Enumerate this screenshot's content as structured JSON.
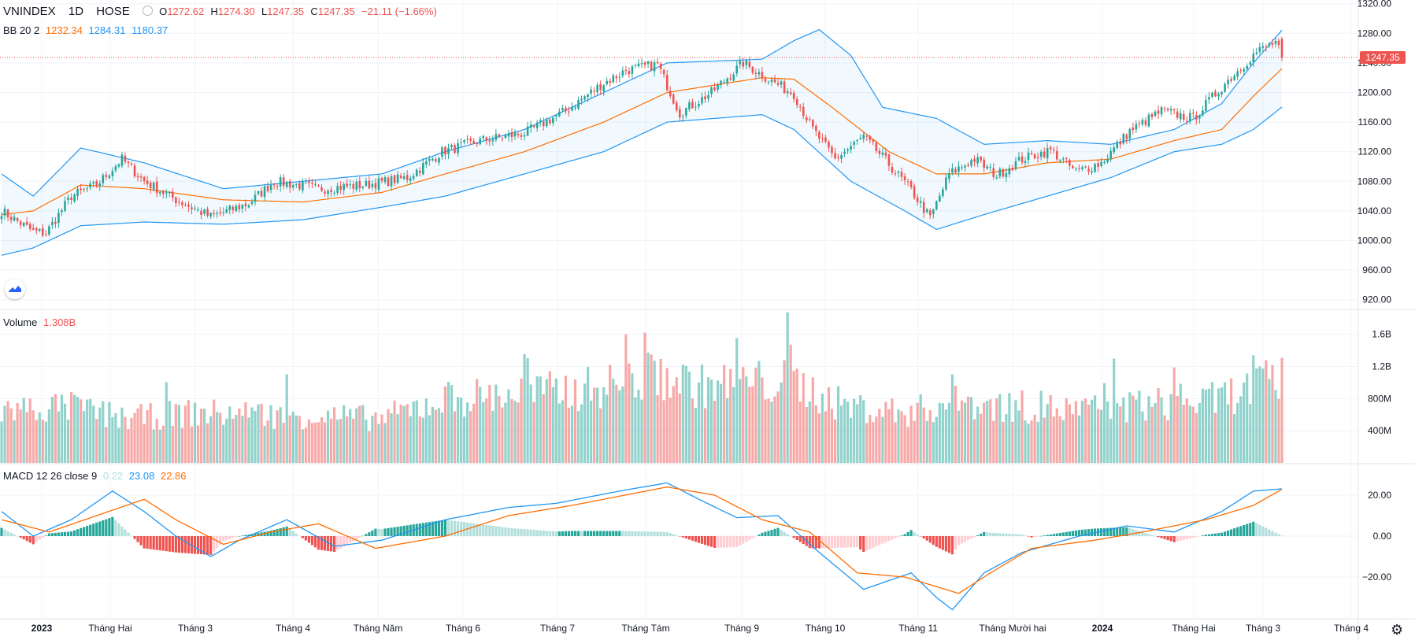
{
  "header": {
    "symbol": "VNINDEX",
    "interval": "1D",
    "exchange": "HOSE",
    "o_label": "O",
    "o_value": "1272.62",
    "h_label": "H",
    "h_value": "1274.30",
    "l_label": "L",
    "l_value": "1247.35",
    "c_label": "C",
    "c_value": "1247.35",
    "change": "−21.11 (−1.66%)"
  },
  "bb_legend": {
    "name": "BB 20 2",
    "basis": "1232.34",
    "upper": "1284.31",
    "lower": "1180.37"
  },
  "volume_legend": {
    "name": "Volume",
    "value": "1.308B"
  },
  "macd_legend": {
    "name": "MACD 12 26 close 9",
    "hist": "0.22",
    "macd": "23.08",
    "signal": "22.86"
  },
  "last_price_label": "1247.35",
  "colors": {
    "up": "#26a69a",
    "down": "#ef5350",
    "upper_band": "#2196f3",
    "basis": "#ff6d00",
    "macd": "#2196f3",
    "signal": "#ff6d00"
  },
  "chart_data": [
    {
      "type": "candlestick",
      "title": "VNINDEX 1D HOSE",
      "y_ticks": [
        "1320.00",
        "1280.00",
        "1240.00",
        "1200.00",
        "1160.00",
        "1120.00",
        "1080.00",
        "1040.00",
        "1000.00",
        "960.00",
        "920.00"
      ],
      "ylim": [
        908,
        1325
      ],
      "x_ticks": [
        "2023",
        "Tháng Hai",
        "Tháng 3",
        "Tháng 4",
        "Tháng Năm",
        "Tháng 6",
        "Tháng 7",
        "Tháng Tám",
        "Tháng 9",
        "Tháng 10",
        "Tháng 11",
        "Tháng Mười hai",
        "2024",
        "Tháng Hai",
        "Tháng 3",
        "Tháng 4"
      ],
      "close_anchors": [
        [
          0,
          1040
        ],
        [
          10,
          1012
        ],
        [
          14,
          1010
        ],
        [
          22,
          1060
        ],
        [
          30,
          1075
        ],
        [
          38,
          1110
        ],
        [
          45,
          1080
        ],
        [
          55,
          1055
        ],
        [
          66,
          1032
        ],
        [
          78,
          1050
        ],
        [
          86,
          1080
        ],
        [
          100,
          1070
        ],
        [
          115,
          1075
        ],
        [
          128,
          1085
        ],
        [
          139,
          1120
        ],
        [
          151,
          1135
        ],
        [
          165,
          1145
        ],
        [
          178,
          1175
        ],
        [
          189,
          1210
        ],
        [
          197,
          1230
        ],
        [
          207,
          1238
        ],
        [
          214,
          1172
        ],
        [
          224,
          1200
        ],
        [
          234,
          1240
        ],
        [
          242,
          1218
        ],
        [
          250,
          1198
        ],
        [
          256,
          1150
        ],
        [
          263,
          1110
        ],
        [
          272,
          1140
        ],
        [
          279,
          1108
        ],
        [
          287,
          1068
        ],
        [
          293,
          1030
        ],
        [
          299,
          1090
        ],
        [
          307,
          1110
        ],
        [
          314,
          1088
        ],
        [
          322,
          1110
        ],
        [
          331,
          1122
        ],
        [
          339,
          1093
        ],
        [
          347,
          1105
        ],
        [
          356,
          1148
        ],
        [
          366,
          1175
        ],
        [
          376,
          1165
        ],
        [
          386,
          1212
        ],
        [
          396,
          1255
        ],
        [
          402,
          1268
        ],
        [
          404,
          1247.35
        ]
      ],
      "bb_anchors": {
        "upper": [
          [
            0,
            1090
          ],
          [
            10,
            1060
          ],
          [
            25,
            1125
          ],
          [
            45,
            1105
          ],
          [
            70,
            1070
          ],
          [
            95,
            1080
          ],
          [
            120,
            1090
          ],
          [
            140,
            1120
          ],
          [
            165,
            1150
          ],
          [
            190,
            1200
          ],
          [
            210,
            1240
          ],
          [
            240,
            1245
          ],
          [
            250,
            1270
          ],
          [
            258,
            1285
          ],
          [
            268,
            1250
          ],
          [
            278,
            1180
          ],
          [
            295,
            1165
          ],
          [
            310,
            1130
          ],
          [
            330,
            1135
          ],
          [
            350,
            1130
          ],
          [
            370,
            1150
          ],
          [
            385,
            1185
          ],
          [
            395,
            1240
          ],
          [
            404,
            1284.31
          ]
        ],
        "basis": [
          [
            0,
            1035
          ],
          [
            10,
            1040
          ],
          [
            25,
            1075
          ],
          [
            45,
            1070
          ],
          [
            70,
            1055
          ],
          [
            95,
            1052
          ],
          [
            120,
            1065
          ],
          [
            140,
            1090
          ],
          [
            165,
            1120
          ],
          [
            190,
            1160
          ],
          [
            210,
            1200
          ],
          [
            240,
            1220
          ],
          [
            250,
            1218
          ],
          [
            262,
            1180
          ],
          [
            280,
            1120
          ],
          [
            295,
            1090
          ],
          [
            310,
            1090
          ],
          [
            330,
            1105
          ],
          [
            350,
            1110
          ],
          [
            370,
            1135
          ],
          [
            385,
            1150
          ],
          [
            395,
            1195
          ],
          [
            404,
            1232.34
          ]
        ],
        "lower": [
          [
            0,
            980
          ],
          [
            10,
            990
          ],
          [
            25,
            1020
          ],
          [
            45,
            1025
          ],
          [
            70,
            1022
          ],
          [
            95,
            1028
          ],
          [
            120,
            1045
          ],
          [
            140,
            1060
          ],
          [
            165,
            1090
          ],
          [
            190,
            1120
          ],
          [
            210,
            1160
          ],
          [
            240,
            1170
          ],
          [
            250,
            1150
          ],
          [
            268,
            1080
          ],
          [
            285,
            1040
          ],
          [
            295,
            1015
          ],
          [
            310,
            1035
          ],
          [
            330,
            1060
          ],
          [
            350,
            1085
          ],
          [
            370,
            1120
          ],
          [
            385,
            1130
          ],
          [
            395,
            1150
          ],
          [
            404,
            1180.37
          ]
        ]
      }
    },
    {
      "type": "bar",
      "title": "Volume",
      "y_ticks": [
        "1.6B",
        "1.2B",
        "800M",
        "400M"
      ],
      "ylim": [
        0,
        1.9
      ],
      "unit": "B",
      "vol_anchors": [
        [
          0,
          0.65
        ],
        [
          20,
          0.7
        ],
        [
          40,
          0.55
        ],
        [
          60,
          0.62
        ],
        [
          90,
          0.6
        ],
        [
          120,
          0.55
        ],
        [
          140,
          0.8
        ],
        [
          160,
          0.85
        ],
        [
          180,
          0.9
        ],
        [
          197,
          1.0
        ],
        [
          207,
          1.1
        ],
        [
          220,
          0.95
        ],
        [
          235,
          1.0
        ],
        [
          250,
          1.0
        ],
        [
          265,
          0.72
        ],
        [
          285,
          0.62
        ],
        [
          300,
          0.75
        ],
        [
          320,
          0.7
        ],
        [
          340,
          0.65
        ],
        [
          360,
          0.72
        ],
        [
          380,
          0.75
        ],
        [
          400,
          1.0
        ]
      ]
    },
    {
      "type": "line+histogram",
      "title": "MACD 12 26 close 9",
      "y_ticks": [
        "20.00",
        "0.00",
        "−20.00"
      ],
      "ylim": [
        -40,
        35
      ],
      "macd_anchors": [
        [
          0,
          12
        ],
        [
          10,
          0
        ],
        [
          22,
          8
        ],
        [
          35,
          22
        ],
        [
          45,
          12
        ],
        [
          55,
          0
        ],
        [
          66,
          -10
        ],
        [
          75,
          -2
        ],
        [
          90,
          8
        ],
        [
          105,
          -5
        ],
        [
          120,
          -2
        ],
        [
          140,
          8
        ],
        [
          160,
          14
        ],
        [
          175,
          16
        ],
        [
          195,
          22
        ],
        [
          210,
          26
        ],
        [
          220,
          18
        ],
        [
          232,
          9
        ],
        [
          245,
          10
        ],
        [
          258,
          -8
        ],
        [
          272,
          -26
        ],
        [
          287,
          -18
        ],
        [
          295,
          -30
        ],
        [
          300,
          -36
        ],
        [
          310,
          -18
        ],
        [
          322,
          -8
        ],
        [
          340,
          0
        ],
        [
          355,
          5
        ],
        [
          370,
          2
        ],
        [
          385,
          12
        ],
        [
          395,
          22
        ],
        [
          404,
          23.08
        ]
      ],
      "signal_anchors": [
        [
          0,
          8
        ],
        [
          15,
          2
        ],
        [
          30,
          10
        ],
        [
          45,
          18
        ],
        [
          55,
          8
        ],
        [
          70,
          -4
        ],
        [
          85,
          2
        ],
        [
          100,
          6
        ],
        [
          118,
          -6
        ],
        [
          140,
          0
        ],
        [
          160,
          10
        ],
        [
          180,
          15
        ],
        [
          210,
          24
        ],
        [
          225,
          20
        ],
        [
          240,
          8
        ],
        [
          255,
          2
        ],
        [
          270,
          -18
        ],
        [
          285,
          -20
        ],
        [
          302,
          -28
        ],
        [
          312,
          -18
        ],
        [
          325,
          -6
        ],
        [
          345,
          -2
        ],
        [
          360,
          2
        ],
        [
          380,
          8
        ],
        [
          395,
          15
        ],
        [
          404,
          22.86
        ]
      ]
    }
  ]
}
